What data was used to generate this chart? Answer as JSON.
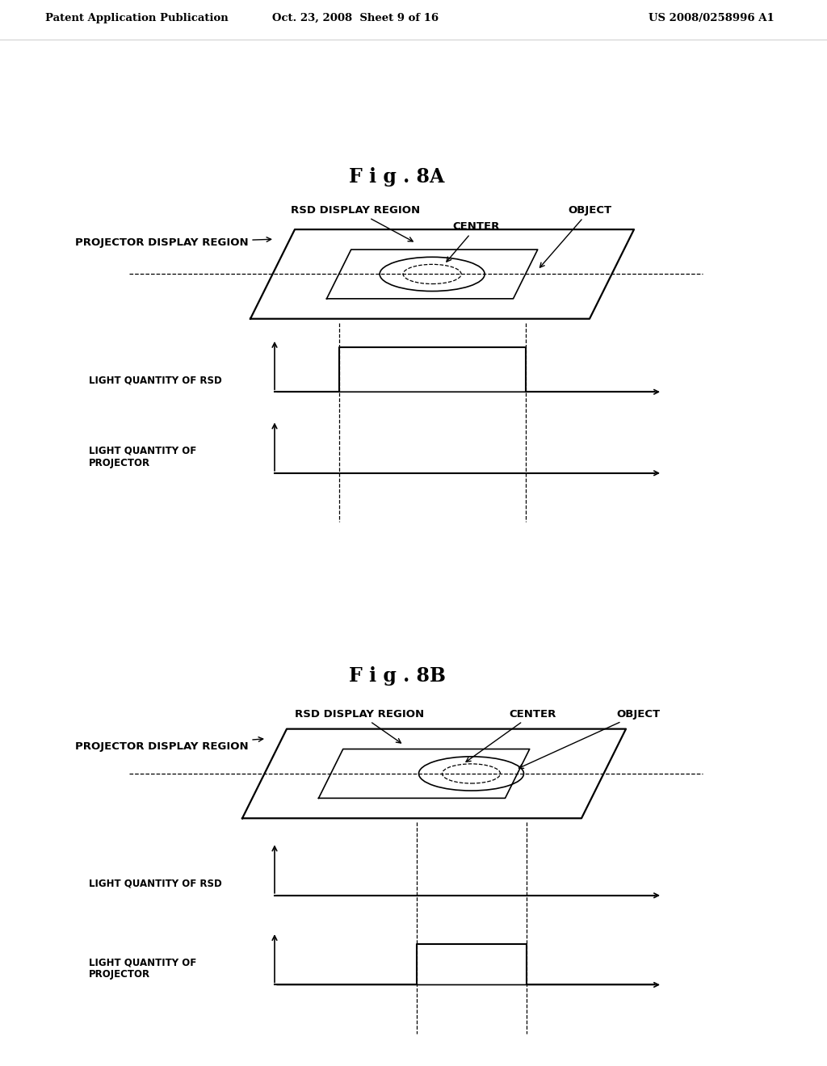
{
  "background_color": "#ffffff",
  "header_left": "Patent Application Publication",
  "header_center": "Oct. 23, 2008  Sheet 9 of 16",
  "header_right": "US 2008/0258996 A1",
  "fig_title_A": "F i g . 8A",
  "fig_title_B": "F i g . 8B",
  "label_rsd_display": "RSD DISPLAY REGION",
  "label_object": "OBJECT",
  "label_center": "CENTER",
  "label_proj_display": "PROJECTOR DISPLAY REGION",
  "label_light_rsd": "LIGHT QUANTITY OF RSD",
  "label_light_proj": "LIGHT QUANTITY OF\nPROJECTOR",
  "header_fontsize": 9.5,
  "title_fontsize": 16,
  "label_fontsize": 8.5,
  "graph_label_fontsize": 8.0
}
